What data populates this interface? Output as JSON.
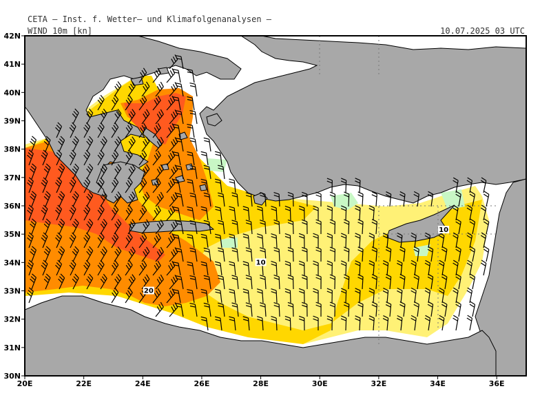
{
  "header": {
    "institute": "CETA — Inst. f. Wetter— und Klimafolgenanalysen —",
    "field": "WIND 10m [kn]",
    "valid_time": "10.07.2025 03 UTC"
  },
  "map": {
    "lon_range": [
      20,
      37
    ],
    "lat_range": [
      30,
      42
    ],
    "lon_ticks": [
      "20E",
      "22E",
      "24E",
      "26E",
      "28E",
      "30E",
      "32E",
      "34E",
      "36E"
    ],
    "lat_ticks": [
      "30N",
      "31N",
      "32N",
      "33N",
      "34N",
      "35N",
      "36N",
      "37N",
      "38N",
      "39N",
      "40N",
      "41N",
      "42N"
    ],
    "contour_labels": [
      {
        "text": "10",
        "lon": 28.0,
        "lat": 33.95
      },
      {
        "text": "20",
        "lon": 24.2,
        "lat": 32.95
      },
      {
        "text": "10",
        "lon": 34.2,
        "lat": 35.1
      }
    ],
    "colors": {
      "land": "#a8a8a8",
      "sea_calm": "#ffffff",
      "wind_light_green": "#c8f7c5",
      "wind_yellow_light": "#fff176",
      "wind_yellow": "#ffd700",
      "wind_orange": "#ff8c00",
      "wind_red_orange": "#ff5a1f"
    }
  }
}
